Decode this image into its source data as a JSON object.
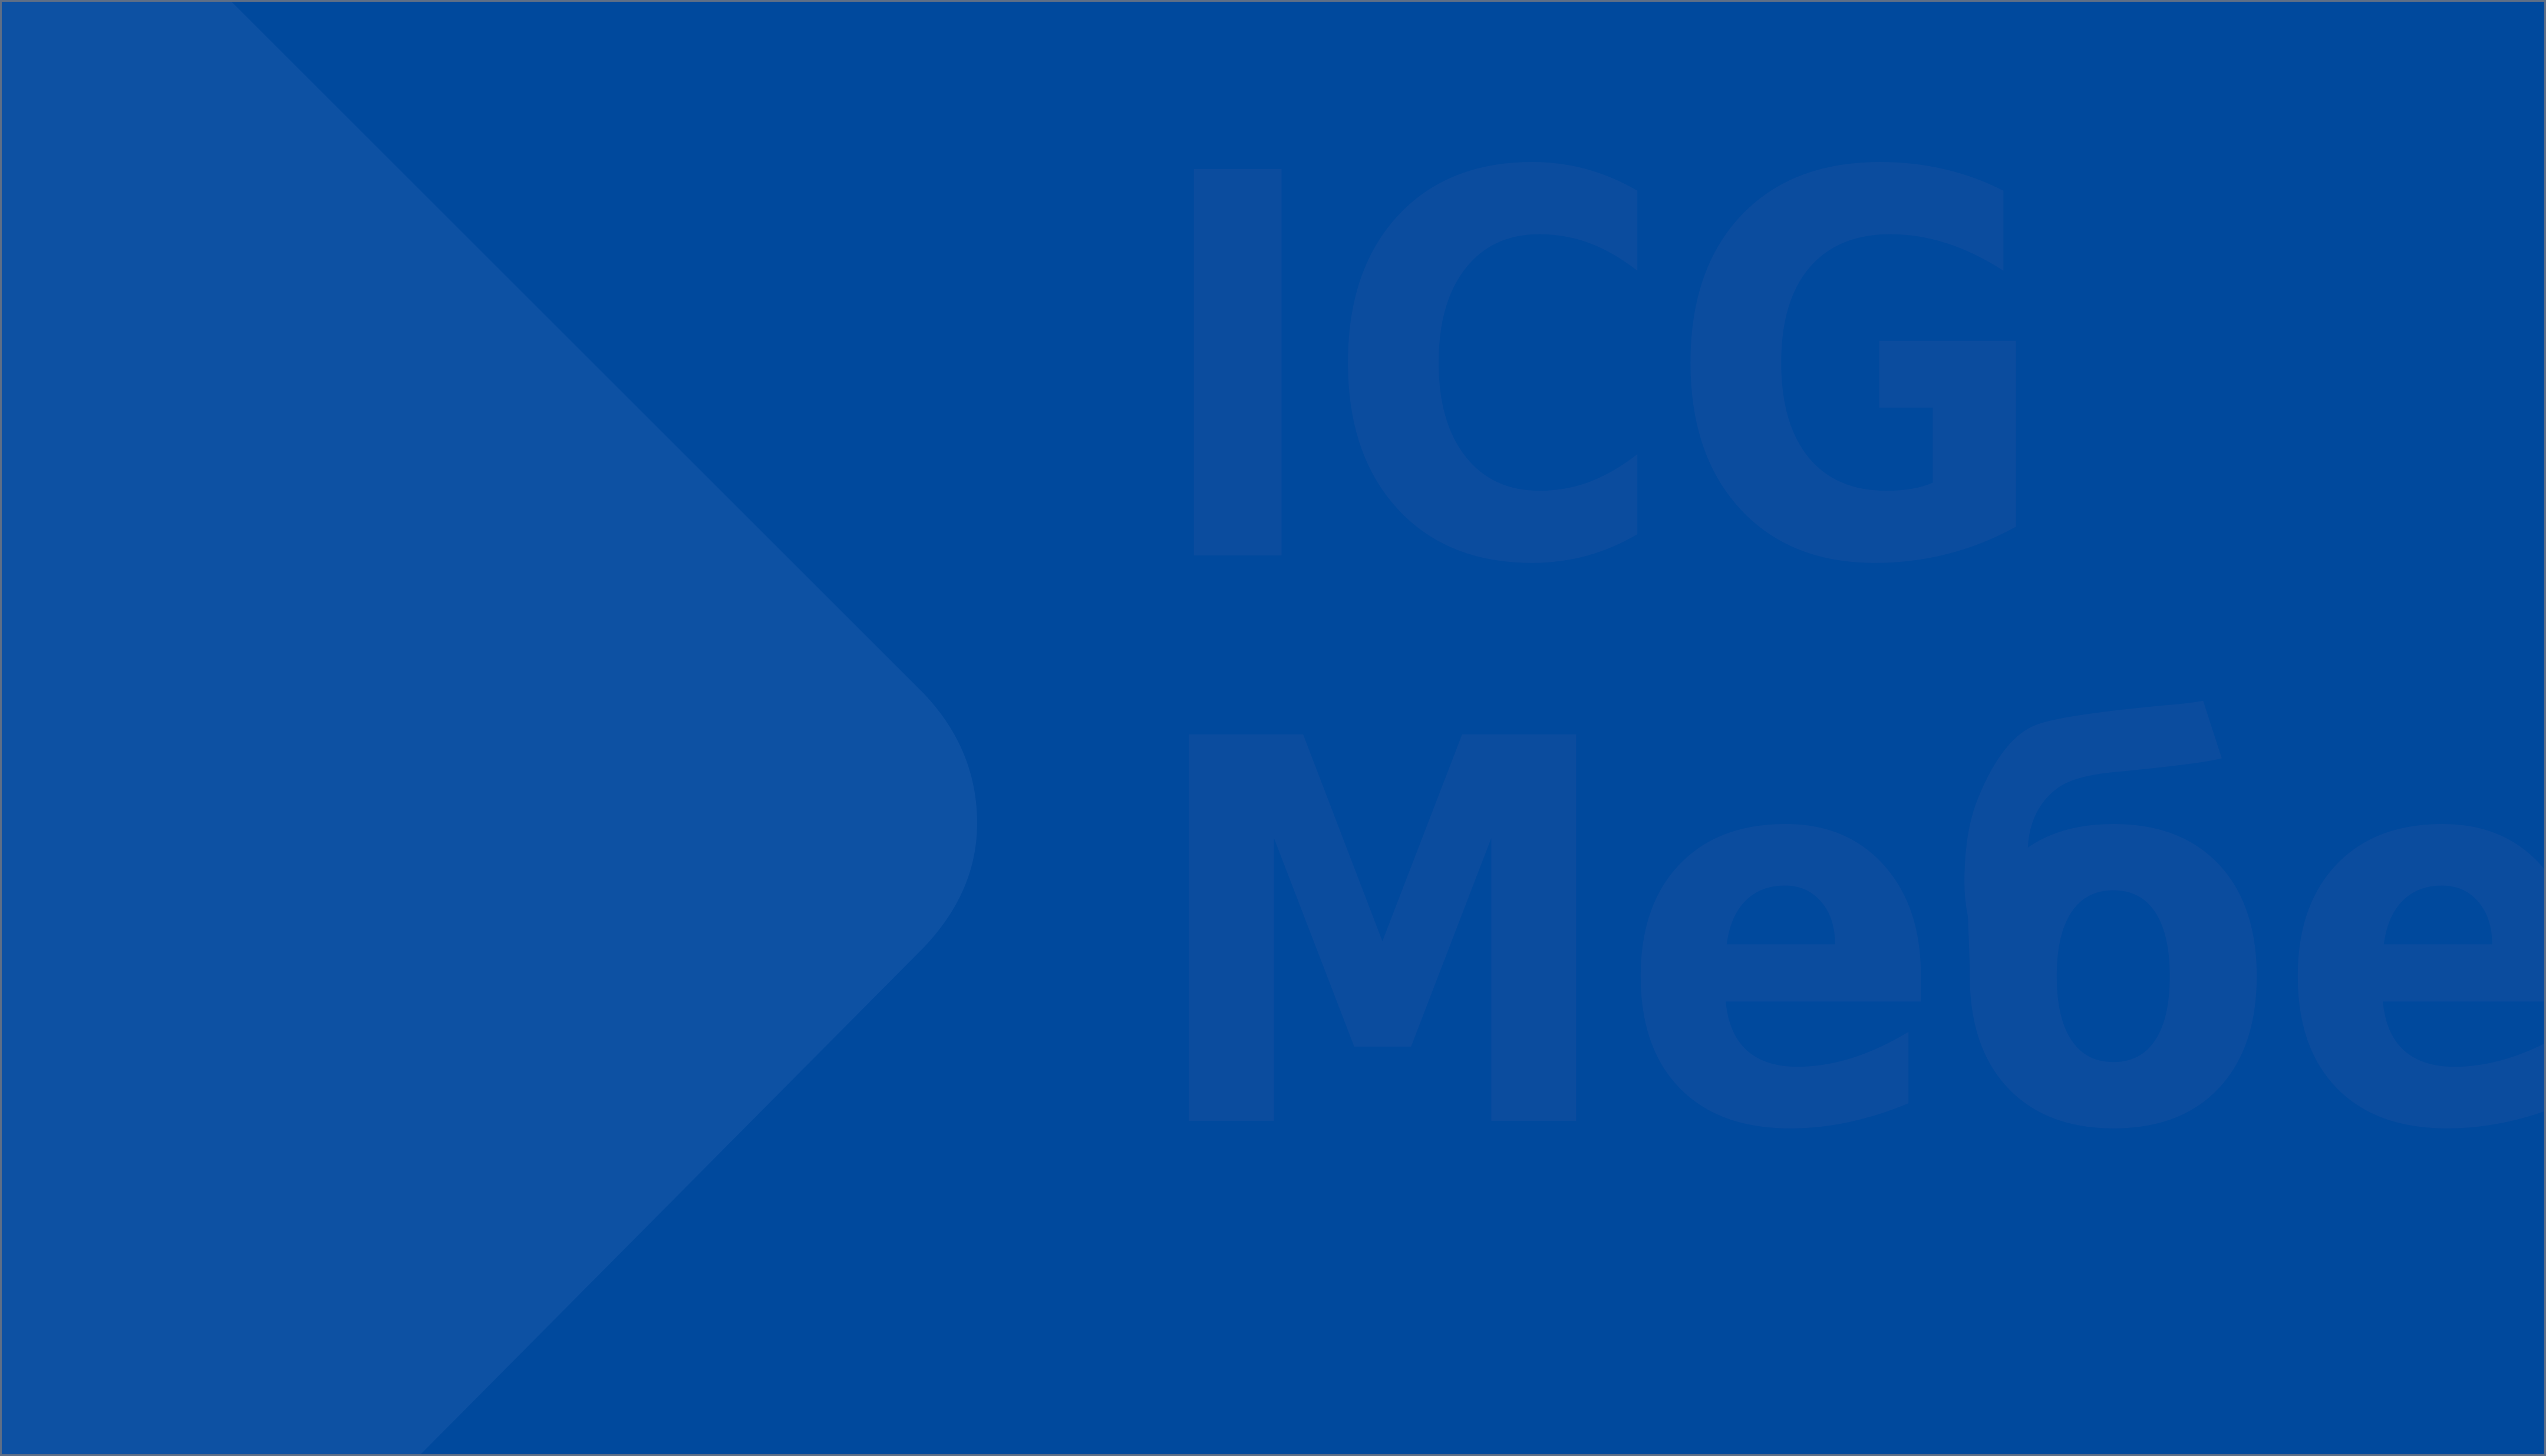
{
  "banner": {
    "background_color": "#00499d",
    "shape_color": "#0d51a3",
    "text_color": "#0b4c9e",
    "line_1": "ICG",
    "line_2": "Мебел"
  }
}
